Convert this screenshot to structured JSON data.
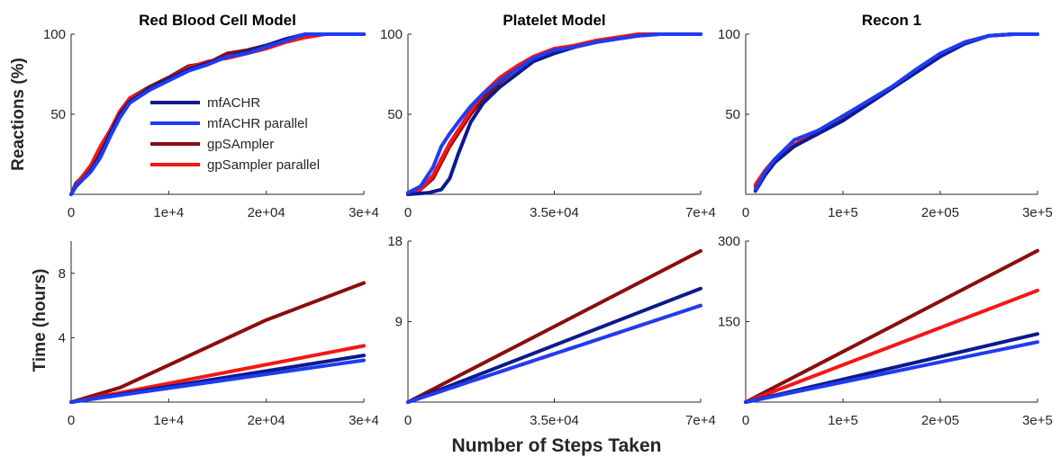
{
  "shared_labels": {
    "reactions_ylabel": "Reactions (%)",
    "time_ylabel": "Time (hours)",
    "xlabel": "Number of Steps Taken"
  },
  "legend": {
    "placement": "inside top panel 1, center",
    "entries": [
      "mfACHR",
      "mfACHR parallel",
      "gpSAmpler",
      "gpSampler parallel"
    ]
  },
  "colors": {
    "mfACHR": "#0b1a8c",
    "mfACHR parallel": "#1f3cf2",
    "gpSAmpler": "#8b0d0d",
    "gpSampler parallel": "#f51616"
  },
  "chart_data": [
    {
      "type": "line",
      "title": "Red Blood Cell Model",
      "ylabel": "Reactions (%)",
      "xlim": [
        0,
        30000
      ],
      "ylim": [
        0,
        100
      ],
      "xticks": [
        0,
        10000,
        20000,
        30000
      ],
      "xtick_labels": [
        "0",
        "1e+4",
        "2e+04",
        "3e+4"
      ],
      "yticks": [
        50,
        100
      ],
      "ytick_labels": [
        "50",
        "100"
      ],
      "series": [
        {
          "name": "mfACHR",
          "x": [
            0,
            500,
            1000,
            2000,
            3000,
            4000,
            5000,
            6000,
            8000,
            10000,
            12000,
            14000,
            16000,
            18000,
            20000,
            22000,
            24000,
            26000,
            30000
          ],
          "y": [
            0,
            5,
            8,
            15,
            25,
            38,
            50,
            58,
            66,
            72,
            78,
            82,
            86,
            89,
            93,
            97,
            100,
            100,
            100
          ]
        },
        {
          "name": "mfACHR parallel",
          "x": [
            0,
            500,
            1000,
            2000,
            3000,
            4000,
            5000,
            6000,
            8000,
            10000,
            12000,
            14000,
            16000,
            18000,
            20000,
            22000,
            24000,
            26000,
            30000
          ],
          "y": [
            0,
            6,
            8,
            14,
            23,
            36,
            48,
            57,
            65,
            71,
            77,
            81,
            86,
            88,
            92,
            96,
            100,
            100,
            100
          ]
        },
        {
          "name": "gpSAmpler",
          "x": [
            0,
            500,
            1000,
            2000,
            3000,
            4000,
            5000,
            6000,
            8000,
            10000,
            12000,
            14000,
            16000,
            18000,
            20000,
            22000,
            24000,
            26000,
            30000
          ],
          "y": [
            0,
            7,
            10,
            17,
            27,
            40,
            51,
            60,
            67,
            73,
            80,
            82,
            88,
            90,
            93,
            96,
            99,
            100,
            100
          ]
        },
        {
          "name": "gpSampler parallel",
          "x": [
            0,
            500,
            1000,
            2000,
            3000,
            4000,
            5000,
            6000,
            8000,
            10000,
            12000,
            14000,
            16000,
            18000,
            20000,
            22000,
            24000,
            26000,
            30000
          ],
          "y": [
            0,
            6,
            10,
            18,
            30,
            40,
            52,
            60,
            66,
            72,
            79,
            83,
            85,
            88,
            91,
            95,
            98,
            100,
            100
          ]
        }
      ]
    },
    {
      "type": "line",
      "title": "Platelet Model",
      "ylabel": "",
      "xlim": [
        0,
        70000
      ],
      "ylim": [
        0,
        100
      ],
      "xticks": [
        0,
        35000,
        70000
      ],
      "xtick_labels": [
        "0",
        "3.5e+04",
        "7e+4"
      ],
      "yticks": [
        50,
        100
      ],
      "ytick_labels": [
        "50",
        "100"
      ],
      "series": [
        {
          "name": "mfACHR",
          "x": [
            0,
            5000,
            8000,
            10000,
            12000,
            15000,
            18000,
            22000,
            26000,
            30000,
            35000,
            40000,
            45000,
            50000,
            55000,
            60000,
            70000
          ],
          "y": [
            0,
            1,
            3,
            10,
            25,
            45,
            57,
            67,
            75,
            83,
            88,
            92,
            95,
            97,
            99,
            100,
            100
          ]
        },
        {
          "name": "mfACHR parallel",
          "x": [
            0,
            3000,
            6000,
            8000,
            10000,
            12000,
            15000,
            18000,
            22000,
            26000,
            30000,
            35000,
            40000,
            45000,
            50000,
            55000,
            60000,
            70000
          ],
          "y": [
            1,
            5,
            17,
            30,
            38,
            45,
            55,
            63,
            71,
            78,
            85,
            90,
            92,
            95,
            97,
            99,
            100,
            100
          ]
        },
        {
          "name": "gpSAmpler",
          "x": [
            0,
            3000,
            6000,
            8000,
            10000,
            12000,
            15000,
            18000,
            22000,
            26000,
            30000,
            35000,
            40000,
            45000,
            50000,
            55000,
            60000,
            70000
          ],
          "y": [
            0,
            3,
            10,
            20,
            30,
            38,
            50,
            60,
            70,
            78,
            86,
            90,
            93,
            96,
            98,
            99,
            100,
            100
          ]
        },
        {
          "name": "gpSampler parallel",
          "x": [
            0,
            3000,
            6000,
            8000,
            10000,
            12000,
            15000,
            18000,
            22000,
            26000,
            30000,
            35000,
            40000,
            45000,
            50000,
            55000,
            60000,
            70000
          ],
          "y": [
            1,
            3,
            12,
            22,
            32,
            40,
            52,
            63,
            73,
            80,
            86,
            91,
            93,
            96,
            98,
            100,
            100,
            100
          ]
        }
      ]
    },
    {
      "type": "line",
      "title": "Recon 1",
      "ylabel": "",
      "xlim": [
        0,
        300000
      ],
      "ylim": [
        0,
        100
      ],
      "xticks": [
        0,
        100000,
        200000,
        300000
      ],
      "xtick_labels": [
        "0",
        "1e+5",
        "2e+05",
        "3e+5"
      ],
      "yticks": [
        50,
        100
      ],
      "ytick_labels": [
        "50",
        "100"
      ],
      "series": [
        {
          "name": "mfACHR",
          "x": [
            10000,
            20000,
            30000,
            50000,
            75000,
            100000,
            125000,
            150000,
            175000,
            200000,
            225000,
            250000,
            275000,
            300000
          ],
          "y": [
            2,
            12,
            20,
            30,
            38,
            46,
            56,
            66,
            76,
            86,
            94,
            99,
            100,
            100
          ]
        },
        {
          "name": "mfACHR parallel",
          "x": [
            10000,
            20000,
            30000,
            50000,
            75000,
            100000,
            125000,
            150000,
            175000,
            200000,
            225000,
            250000,
            275000,
            300000
          ],
          "y": [
            3,
            14,
            22,
            34,
            40,
            49,
            58,
            67,
            78,
            88,
            95,
            99,
            100,
            100
          ]
        },
        {
          "name": "gpSAmpler",
          "x": [
            10000,
            20000,
            30000,
            50000,
            75000,
            100000,
            125000,
            150000,
            175000,
            200000,
            225000,
            250000,
            275000,
            300000
          ],
          "y": [
            5,
            14,
            21,
            30,
            39,
            48,
            58,
            67,
            77,
            87,
            95,
            99,
            100,
            100
          ]
        },
        {
          "name": "gpSampler parallel",
          "x": [
            10000,
            20000,
            30000,
            50000,
            75000,
            100000,
            125000,
            150000,
            175000,
            200000,
            225000,
            250000,
            275000,
            300000
          ],
          "y": [
            6,
            15,
            22,
            31,
            40,
            48,
            57,
            67,
            76,
            87,
            95,
            99,
            100,
            100
          ]
        }
      ]
    },
    {
      "type": "line",
      "title": "",
      "ylabel": "Time (hours)",
      "xlim": [
        0,
        30000
      ],
      "ylim": [
        0,
        10
      ],
      "xticks": [
        0,
        10000,
        20000,
        30000
      ],
      "xtick_labels": [
        "0",
        "1e+4",
        "2e+04",
        "3e+4"
      ],
      "yticks": [
        4,
        8
      ],
      "ytick_labels": [
        "4",
        "8"
      ],
      "series": [
        {
          "name": "mfACHR",
          "x": [
            0,
            30000
          ],
          "y": [
            0,
            2.9
          ]
        },
        {
          "name": "mfACHR parallel",
          "x": [
            0,
            30000
          ],
          "y": [
            0,
            2.6
          ]
        },
        {
          "name": "gpSAmpler",
          "x": [
            0,
            5000,
            20000,
            30000
          ],
          "y": [
            0,
            0.9,
            5.1,
            7.4
          ]
        },
        {
          "name": "gpSampler parallel",
          "x": [
            0,
            30000
          ],
          "y": [
            0,
            3.5
          ]
        }
      ]
    },
    {
      "type": "line",
      "title": "",
      "ylabel": "",
      "xlim": [
        0,
        70000
      ],
      "ylim": [
        0,
        18
      ],
      "xticks": [
        0,
        35000,
        70000
      ],
      "xtick_labels": [
        "0",
        "3.5e+04",
        "7e+4"
      ],
      "yticks": [
        9,
        18
      ],
      "ytick_labels": [
        "9",
        "18"
      ],
      "series": [
        {
          "name": "mfACHR",
          "x": [
            0,
            70000
          ],
          "y": [
            0,
            12.7
          ]
        },
        {
          "name": "mfACHR parallel",
          "x": [
            0,
            70000
          ],
          "y": [
            0,
            10.8
          ]
        },
        {
          "name": "gpSAmpler",
          "x": [
            0,
            70000
          ],
          "y": [
            0,
            16.9
          ]
        },
        {
          "name": "gpSampler parallel",
          "x": [
            0,
            70000
          ],
          "y": [
            0,
            10.8
          ],
          "dashed": true
        }
      ]
    },
    {
      "type": "line",
      "title": "",
      "ylabel": "",
      "xlim": [
        0,
        300000
      ],
      "ylim": [
        0,
        300
      ],
      "xticks": [
        0,
        100000,
        200000,
        300000
      ],
      "xtick_labels": [
        "0",
        "1e+5",
        "2e+05",
        "3e+5"
      ],
      "yticks": [
        150,
        300
      ],
      "ytick_labels": [
        "150",
        "300"
      ],
      "series": [
        {
          "name": "mfACHR",
          "x": [
            0,
            300000
          ],
          "y": [
            0,
            127
          ]
        },
        {
          "name": "mfACHR parallel",
          "x": [
            0,
            300000
          ],
          "y": [
            0,
            112
          ]
        },
        {
          "name": "gpSAmpler",
          "x": [
            0,
            300000
          ],
          "y": [
            0,
            282
          ]
        },
        {
          "name": "gpSampler parallel",
          "x": [
            0,
            300000
          ],
          "y": [
            0,
            208
          ]
        }
      ]
    }
  ]
}
